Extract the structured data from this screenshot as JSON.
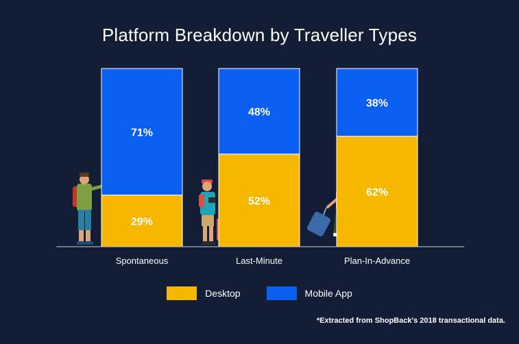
{
  "chart_data": {
    "type": "bar",
    "stacked": true,
    "title": "Platform Breakdown by Traveller Types",
    "categories": [
      "Spontaneous",
      "Last-Minute",
      "Plan-In-Advance"
    ],
    "series": [
      {
        "name": "Desktop",
        "values": [
          29,
          52,
          62
        ],
        "color": "#f5b700"
      },
      {
        "name": "Mobile App",
        "values": [
          71,
          48,
          38
        ],
        "color": "#0a5ff0"
      }
    ],
    "value_suffix": "%",
    "ylim": [
      0,
      100
    ],
    "grid": false,
    "legend_position": "bottom-center",
    "footnote": "*Extracted from ShopBack's 2018 transactional data."
  },
  "illustrations": [
    "hitchhiker-traveller-icon",
    "suitcase-traveller-icon",
    "rolling-luggage-traveller-icon"
  ]
}
